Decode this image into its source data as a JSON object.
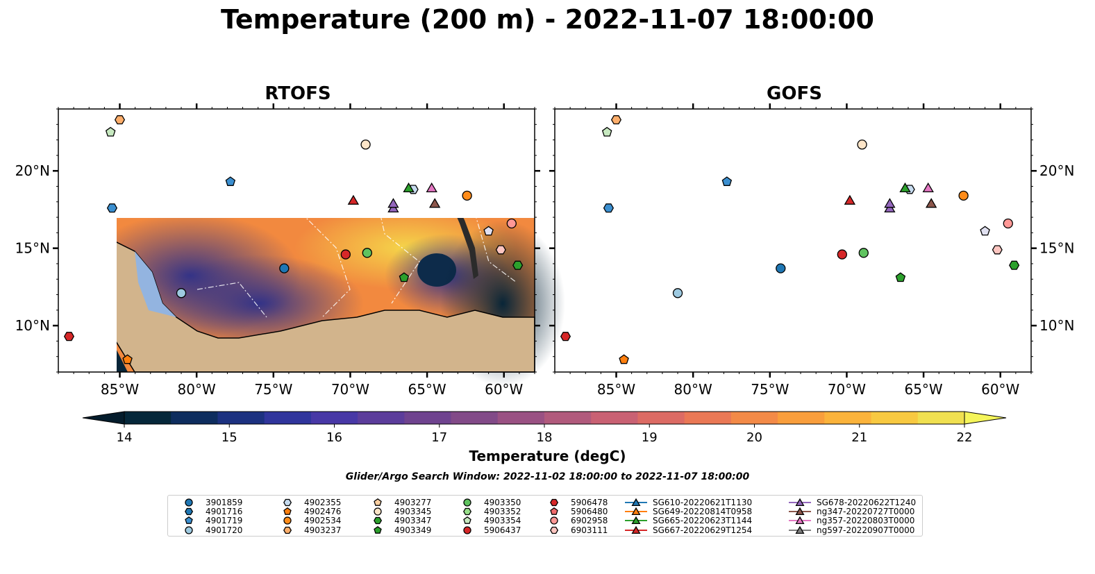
{
  "title": "Temperature (200 m) - 2022-11-07 18:00:00",
  "panels": [
    {
      "title": "RTOFS"
    },
    {
      "title": "GOFS"
    }
  ],
  "map": {
    "lon_range": [
      -89,
      -58
    ],
    "lat_range": [
      7,
      24
    ],
    "lon_ticks": [
      {
        "value": -85,
        "label": "85°W"
      },
      {
        "value": -80,
        "label": "80°W"
      },
      {
        "value": -75,
        "label": "75°W"
      },
      {
        "value": -70,
        "label": "70°W"
      },
      {
        "value": -65,
        "label": "65°W"
      },
      {
        "value": -60,
        "label": "60°W"
      }
    ],
    "lat_ticks": [
      {
        "value": 10,
        "label": "10°N"
      },
      {
        "value": 15,
        "label": "15°N"
      },
      {
        "value": 20,
        "label": "20°N"
      }
    ],
    "colors": {
      "ocean_warm": "#f59a3e",
      "ocean_cool": "#3b2f8f",
      "land": "#d2b48c",
      "shelf": "#93b4e0",
      "deep": "#0b2233"
    }
  },
  "colorbar": {
    "label": "Temperature (degC)",
    "min": 14,
    "max": 22,
    "ticks": [
      {
        "value": 14,
        "label": "14"
      },
      {
        "value": 15,
        "label": "15"
      },
      {
        "value": 16,
        "label": "16"
      },
      {
        "value": 17,
        "label": "17"
      },
      {
        "value": 18,
        "label": "18"
      },
      {
        "value": 19,
        "label": "19"
      },
      {
        "value": 20,
        "label": "20"
      },
      {
        "value": 21,
        "label": "21"
      },
      {
        "value": 22,
        "label": "22"
      }
    ],
    "colors": [
      "#05273a",
      "#0e2d5e",
      "#1c3180",
      "#30359c",
      "#4838a6",
      "#5c3d9b",
      "#6f438f",
      "#824a88",
      "#9a5183",
      "#b15a7c",
      "#c96173",
      "#dc6b64",
      "#ea7855",
      "#f38a47",
      "#f99e3c",
      "#fbb33b",
      "#f8c941",
      "#f0e050"
    ]
  },
  "search_window": "Glider/Argo Search Window: 2022-11-02 18:00:00 to 2022-11-07 18:00:00",
  "legend": [
    {
      "name": "3901859",
      "color": "#1f77b4",
      "marker": "circle"
    },
    {
      "name": "4901716",
      "color": "#1f77b4",
      "marker": "hexagon"
    },
    {
      "name": "4901719",
      "color": "#3b8fd0",
      "marker": "pentagon"
    },
    {
      "name": "4901720",
      "color": "#9ecae1",
      "marker": "circle"
    },
    {
      "name": "4902355",
      "color": "#c6dbef",
      "marker": "hexagon"
    },
    {
      "name": "4902476",
      "color": "#ff7f0e",
      "marker": "pentagon"
    },
    {
      "name": "4902534",
      "color": "#ff8c1a",
      "marker": "circle"
    },
    {
      "name": "4903237",
      "color": "#fdae6b",
      "marker": "hexagon"
    },
    {
      "name": "4903277",
      "color": "#fdd0a2",
      "marker": "pentagon"
    },
    {
      "name": "4903345",
      "color": "#fde5c8",
      "marker": "circle"
    },
    {
      "name": "4903347",
      "color": "#2ca02c",
      "marker": "hexagon"
    },
    {
      "name": "4903349",
      "color": "#2ca02c",
      "marker": "pentagon"
    },
    {
      "name": "4903350",
      "color": "#5fc35f",
      "marker": "circle"
    },
    {
      "name": "4903352",
      "color": "#98df8a",
      "marker": "hexagon"
    },
    {
      "name": "4903354",
      "color": "#c7e9c0",
      "marker": "pentagon"
    },
    {
      "name": "5906437",
      "color": "#d62728",
      "marker": "circle"
    },
    {
      "name": "5906478",
      "color": "#d62728",
      "marker": "hexagon"
    },
    {
      "name": "5906480",
      "color": "#ef6a6b",
      "marker": "pentagon"
    },
    {
      "name": "6902958",
      "color": "#ff9896",
      "marker": "circle"
    },
    {
      "name": "6903111",
      "color": "#fcc5c0",
      "marker": "hexagon"
    },
    {
      "name": "SG610-20220621T1130",
      "color": "#1f77b4",
      "marker": "triangle"
    },
    {
      "name": "SG649-20220814T0958",
      "color": "#ff7f0e",
      "marker": "triangle"
    },
    {
      "name": "SG665-20220623T1144",
      "color": "#2ca02c",
      "marker": "triangle"
    },
    {
      "name": "SG667-20220629T1254",
      "color": "#d62728",
      "marker": "triangle"
    },
    {
      "name": "SG678-20220622T1240",
      "color": "#9467bd",
      "marker": "triangle"
    },
    {
      "name": "ng347-20220727T0000",
      "color": "#8c564b",
      "marker": "triangle"
    },
    {
      "name": "ng357-20220803T0000",
      "color": "#e377c2",
      "marker": "triangle"
    },
    {
      "name": "ng597-20220907T0000",
      "color": "#7f7f7f",
      "marker": "triangle"
    }
  ],
  "observations": [
    {
      "lon": -85.0,
      "lat": 23.3,
      "color": "#fdae6b",
      "marker": "hexagon"
    },
    {
      "lon": -85.6,
      "lat": 22.5,
      "color": "#c7e9c0",
      "marker": "pentagon"
    },
    {
      "lon": -85.5,
      "lat": 17.6,
      "color": "#3b8fd0",
      "marker": "hexagon"
    },
    {
      "lon": -77.8,
      "lat": 19.3,
      "color": "#3b8fd0",
      "marker": "pentagon"
    },
    {
      "lon": -69.0,
      "lat": 21.7,
      "color": "#fde5c8",
      "marker": "circle"
    },
    {
      "lon": -74.3,
      "lat": 13.7,
      "color": "#1f77b4",
      "marker": "circle"
    },
    {
      "lon": -81.0,
      "lat": 12.1,
      "color": "#9ecae1",
      "marker": "circle"
    },
    {
      "lon": -70.3,
      "lat": 14.6,
      "color": "#d62728",
      "marker": "circle"
    },
    {
      "lon": -68.9,
      "lat": 14.7,
      "color": "#5fc35f",
      "marker": "circle"
    },
    {
      "lon": -66.5,
      "lat": 13.1,
      "color": "#2ca02c",
      "marker": "pentagon"
    },
    {
      "lon": -62.4,
      "lat": 18.4,
      "color": "#ff8c1a",
      "marker": "circle"
    },
    {
      "lon": -59.5,
      "lat": 16.6,
      "color": "#ff9896",
      "marker": "circle"
    },
    {
      "lon": -60.2,
      "lat": 14.9,
      "color": "#fcc5c0",
      "marker": "hexagon"
    },
    {
      "lon": -59.1,
      "lat": 13.9,
      "color": "#2ca02c",
      "marker": "hexagon"
    },
    {
      "lon": -65.9,
      "lat": 18.8,
      "color": "#c6dbef",
      "marker": "hexagon"
    },
    {
      "lon": -88.3,
      "lat": 9.3,
      "color": "#d62728",
      "marker": "hexagon"
    },
    {
      "lon": -84.5,
      "lat": 7.8,
      "color": "#ff7f0e",
      "marker": "pentagon"
    },
    {
      "lon": -61.0,
      "lat": 16.1,
      "color": "#e0e0f0",
      "marker": "pentagon"
    },
    {
      "lon": -66.2,
      "lat": 18.9,
      "color": "#2ca02c",
      "marker": "triangle"
    },
    {
      "lon": -69.8,
      "lat": 18.1,
      "color": "#d62728",
      "marker": "triangle"
    },
    {
      "lon": -67.2,
      "lat": 17.6,
      "color": "#9467bd",
      "marker": "triangle"
    },
    {
      "lon": -67.2,
      "lat": 17.9,
      "color": "#9467bd",
      "marker": "triangle"
    },
    {
      "lon": -64.7,
      "lat": 18.9,
      "color": "#e377c2",
      "marker": "triangle"
    },
    {
      "lon": -64.5,
      "lat": 17.9,
      "color": "#8c564b",
      "marker": "triangle"
    }
  ]
}
